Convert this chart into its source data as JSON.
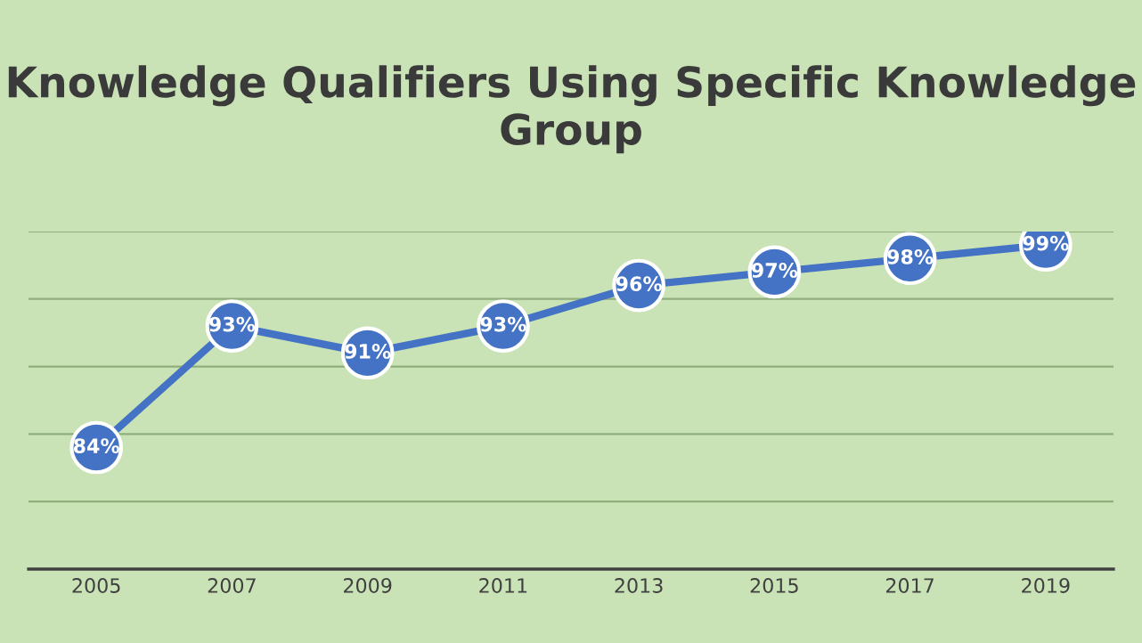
{
  "chart_data": {
    "type": "line",
    "title": "Knowledge Qualifiers Using Specific Knowledge Group",
    "categories": [
      "2005",
      "2007",
      "2009",
      "2011",
      "2013",
      "2015",
      "2017",
      "2019"
    ],
    "series": [
      {
        "color": "#4472c4",
        "values": [
          84,
          93,
          91,
          93,
          96,
          97,
          98,
          99
        ],
        "value_labels": [
          "84%",
          "93%",
          "91%",
          "93%",
          "96%",
          "97%",
          "98%",
          "99%"
        ]
      }
    ],
    "ylim": [
      75,
      100
    ],
    "yticks": [
      {
        "value": 80,
        "label": null
      },
      {
        "value": 85,
        "label": null
      },
      {
        "value": 90,
        "label": null
      },
      {
        "value": 95,
        "label": null
      },
      {
        "value": 100,
        "label": null
      }
    ],
    "tick_labels": "x",
    "grid": "y",
    "marker": "circle",
    "line_style": "solid"
  }
}
